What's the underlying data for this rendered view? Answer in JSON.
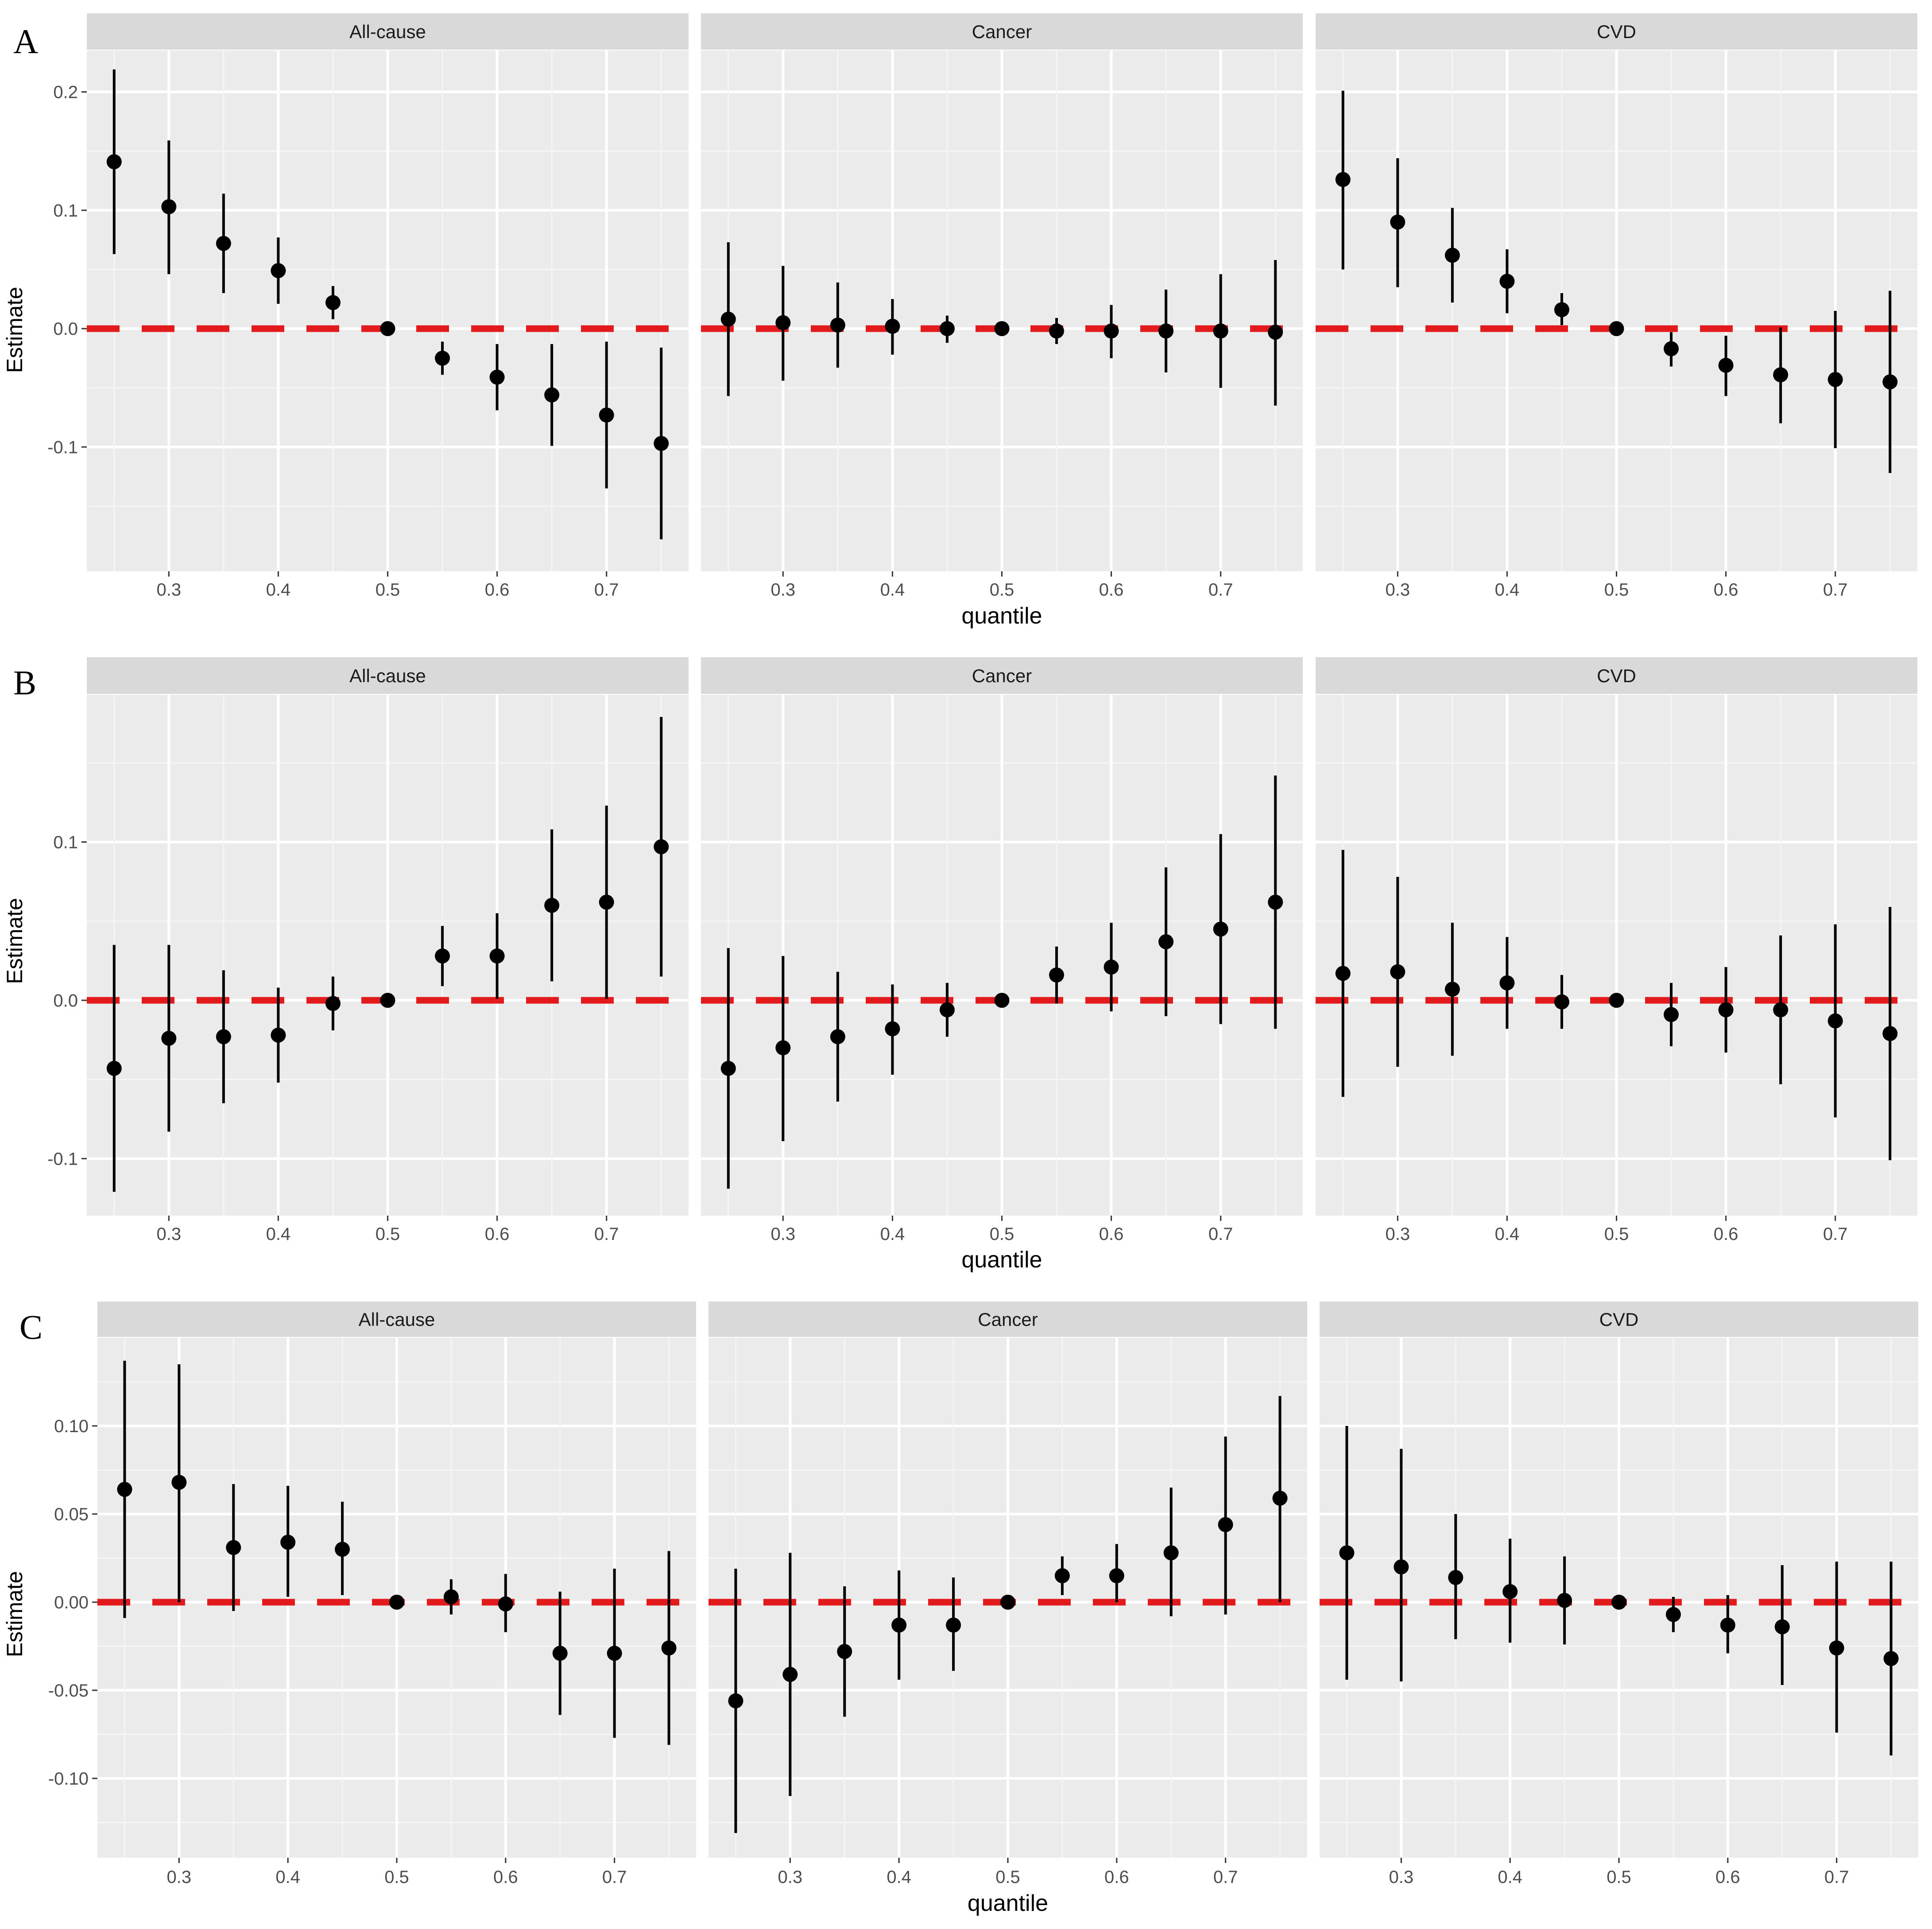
{
  "chart_data": [
    {
      "type": "scatter",
      "panel_label": "A",
      "xlabel": "quantile",
      "ylabel": "Estimate",
      "xlim": [
        0.225,
        0.775
      ],
      "ylim": [
        -0.205,
        0.235
      ],
      "x_ticks": [
        0.3,
        0.4,
        0.5,
        0.6,
        0.7
      ],
      "x_tick_labels": [
        "0.3",
        "0.4",
        "0.5",
        "0.6",
        "0.7"
      ],
      "y_ticks": [
        -0.1,
        0.0,
        0.1,
        0.2
      ],
      "y_tick_labels": [
        "-0.1",
        "0.0",
        "0.1",
        "0.2"
      ],
      "reference_line": {
        "y": 0,
        "color": "#e31a1c",
        "style": "dashed"
      },
      "x": [
        0.25,
        0.3,
        0.35,
        0.4,
        0.45,
        0.5,
        0.55,
        0.6,
        0.65,
        0.7,
        0.75
      ],
      "facets": [
        {
          "name": "All-cause",
          "values": [
            0.141,
            0.103,
            0.072,
            0.049,
            0.022,
            0.0,
            -0.025,
            -0.041,
            -0.056,
            -0.073,
            -0.097
          ],
          "lower": [
            0.063,
            0.046,
            0.03,
            0.021,
            0.008,
            0.0,
            -0.039,
            -0.069,
            -0.099,
            -0.135,
            -0.178
          ],
          "upper": [
            0.219,
            0.159,
            0.114,
            0.077,
            0.036,
            0.0,
            -0.011,
            -0.013,
            -0.013,
            -0.011,
            -0.016
          ]
        },
        {
          "name": "Cancer",
          "values": [
            0.008,
            0.005,
            0.003,
            0.002,
            0.0,
            0.0,
            -0.002,
            -0.002,
            -0.002,
            -0.002,
            -0.003
          ],
          "lower": [
            -0.057,
            -0.044,
            -0.033,
            -0.022,
            -0.012,
            0.0,
            -0.013,
            -0.025,
            -0.037,
            -0.05,
            -0.065
          ],
          "upper": [
            0.073,
            0.053,
            0.039,
            0.025,
            0.011,
            0.0,
            0.009,
            0.02,
            0.033,
            0.046,
            0.058
          ]
        },
        {
          "name": "CVD",
          "values": [
            0.126,
            0.09,
            0.062,
            0.04,
            0.016,
            0.0,
            -0.017,
            -0.031,
            -0.039,
            -0.043,
            -0.045
          ],
          "lower": [
            0.05,
            0.035,
            0.022,
            0.013,
            0.003,
            0.0,
            -0.032,
            -0.057,
            -0.08,
            -0.101,
            -0.122
          ],
          "upper": [
            0.201,
            0.144,
            0.102,
            0.067,
            0.03,
            0.0,
            -0.003,
            -0.006,
            0.001,
            0.015,
            0.032
          ]
        }
      ]
    },
    {
      "type": "scatter",
      "panel_label": "B",
      "xlabel": "quantile",
      "ylabel": "Estimate",
      "xlim": [
        0.225,
        0.775
      ],
      "ylim": [
        -0.136,
        0.193
      ],
      "x_ticks": [
        0.3,
        0.4,
        0.5,
        0.6,
        0.7
      ],
      "x_tick_labels": [
        "0.3",
        "0.4",
        "0.5",
        "0.6",
        "0.7"
      ],
      "y_ticks": [
        -0.1,
        0.0,
        0.1
      ],
      "y_tick_labels": [
        "-0.1",
        "0.0",
        "0.1"
      ],
      "reference_line": {
        "y": 0,
        "color": "#e31a1c",
        "style": "dashed"
      },
      "x": [
        0.25,
        0.3,
        0.35,
        0.4,
        0.45,
        0.5,
        0.55,
        0.6,
        0.65,
        0.7,
        0.75
      ],
      "facets": [
        {
          "name": "All-cause",
          "values": [
            -0.043,
            -0.024,
            -0.023,
            -0.022,
            -0.002,
            0.0,
            0.028,
            0.028,
            0.06,
            0.062,
            0.097
          ],
          "lower": [
            -0.121,
            -0.083,
            -0.065,
            -0.052,
            -0.019,
            0.0,
            0.009,
            0.001,
            0.012,
            0.001,
            0.015
          ],
          "upper": [
            0.035,
            0.035,
            0.019,
            0.008,
            0.015,
            0.0,
            0.047,
            0.055,
            0.108,
            0.123,
            0.179
          ]
        },
        {
          "name": "Cancer",
          "values": [
            -0.043,
            -0.03,
            -0.023,
            -0.018,
            -0.006,
            0.0,
            0.016,
            0.021,
            0.037,
            0.045,
            0.062
          ],
          "lower": [
            -0.119,
            -0.089,
            -0.064,
            -0.047,
            -0.023,
            0.0,
            -0.002,
            -0.007,
            -0.01,
            -0.015,
            -0.018
          ],
          "upper": [
            0.033,
            0.028,
            0.018,
            0.01,
            0.011,
            0.0,
            0.034,
            0.049,
            0.084,
            0.105,
            0.142
          ]
        },
        {
          "name": "CVD",
          "values": [
            0.017,
            0.018,
            0.007,
            0.011,
            -0.001,
            0.0,
            -0.009,
            -0.006,
            -0.006,
            -0.013,
            -0.021
          ],
          "lower": [
            -0.061,
            -0.042,
            -0.035,
            -0.018,
            -0.018,
            0.0,
            -0.029,
            -0.033,
            -0.053,
            -0.074,
            -0.101
          ],
          "upper": [
            0.095,
            0.078,
            0.049,
            0.04,
            0.016,
            0.0,
            0.011,
            0.021,
            0.041,
            0.048,
            0.059
          ]
        }
      ]
    },
    {
      "type": "scatter",
      "panel_label": "C",
      "xlabel": "quantile",
      "ylabel": "Estimate",
      "xlim": [
        0.225,
        0.775
      ],
      "ylim": [
        -0.145,
        0.15
      ],
      "x_ticks": [
        0.3,
        0.4,
        0.5,
        0.6,
        0.7
      ],
      "x_tick_labels": [
        "0.3",
        "0.4",
        "0.5",
        "0.6",
        "0.7"
      ],
      "y_ticks": [
        -0.1,
        -0.05,
        0.0,
        0.05,
        0.1
      ],
      "y_tick_labels": [
        "-0.10",
        "-0.05",
        "0.00",
        "0.05",
        "0.10"
      ],
      "reference_line": {
        "y": 0,
        "color": "#e31a1c",
        "style": "dashed"
      },
      "x": [
        0.25,
        0.3,
        0.35,
        0.4,
        0.45,
        0.5,
        0.55,
        0.6,
        0.65,
        0.7,
        0.75
      ],
      "facets": [
        {
          "name": "All-cause",
          "values": [
            0.064,
            0.068,
            0.031,
            0.034,
            0.03,
            0.0,
            0.003,
            -0.001,
            -0.029,
            -0.029,
            -0.026
          ],
          "lower": [
            -0.009,
            0.0,
            -0.005,
            0.003,
            0.004,
            0.0,
            -0.007,
            -0.017,
            -0.064,
            -0.077,
            -0.081
          ],
          "upper": [
            0.137,
            0.135,
            0.067,
            0.066,
            0.057,
            0.0,
            0.013,
            0.016,
            0.006,
            0.019,
            0.029
          ]
        },
        {
          "name": "Cancer",
          "values": [
            -0.056,
            -0.041,
            -0.028,
            -0.013,
            -0.013,
            0.0,
            0.015,
            0.015,
            0.028,
            0.044,
            0.059
          ],
          "lower": [
            -0.131,
            -0.11,
            -0.065,
            -0.044,
            -0.039,
            0.0,
            0.004,
            0.0,
            -0.008,
            -0.007,
            0.0
          ],
          "upper": [
            0.019,
            0.028,
            0.009,
            0.018,
            0.014,
            0.0,
            0.026,
            0.033,
            0.065,
            0.094,
            0.117
          ]
        },
        {
          "name": "CVD",
          "values": [
            0.028,
            0.02,
            0.014,
            0.006,
            0.001,
            0.0,
            -0.007,
            -0.013,
            -0.014,
            -0.026,
            -0.032
          ],
          "lower": [
            -0.044,
            -0.045,
            -0.021,
            -0.023,
            -0.024,
            0.0,
            -0.017,
            -0.029,
            -0.047,
            -0.074,
            -0.087
          ],
          "upper": [
            0.1,
            0.087,
            0.05,
            0.036,
            0.026,
            0.0,
            0.003,
            0.004,
            0.021,
            0.023,
            0.023
          ]
        }
      ]
    }
  ]
}
